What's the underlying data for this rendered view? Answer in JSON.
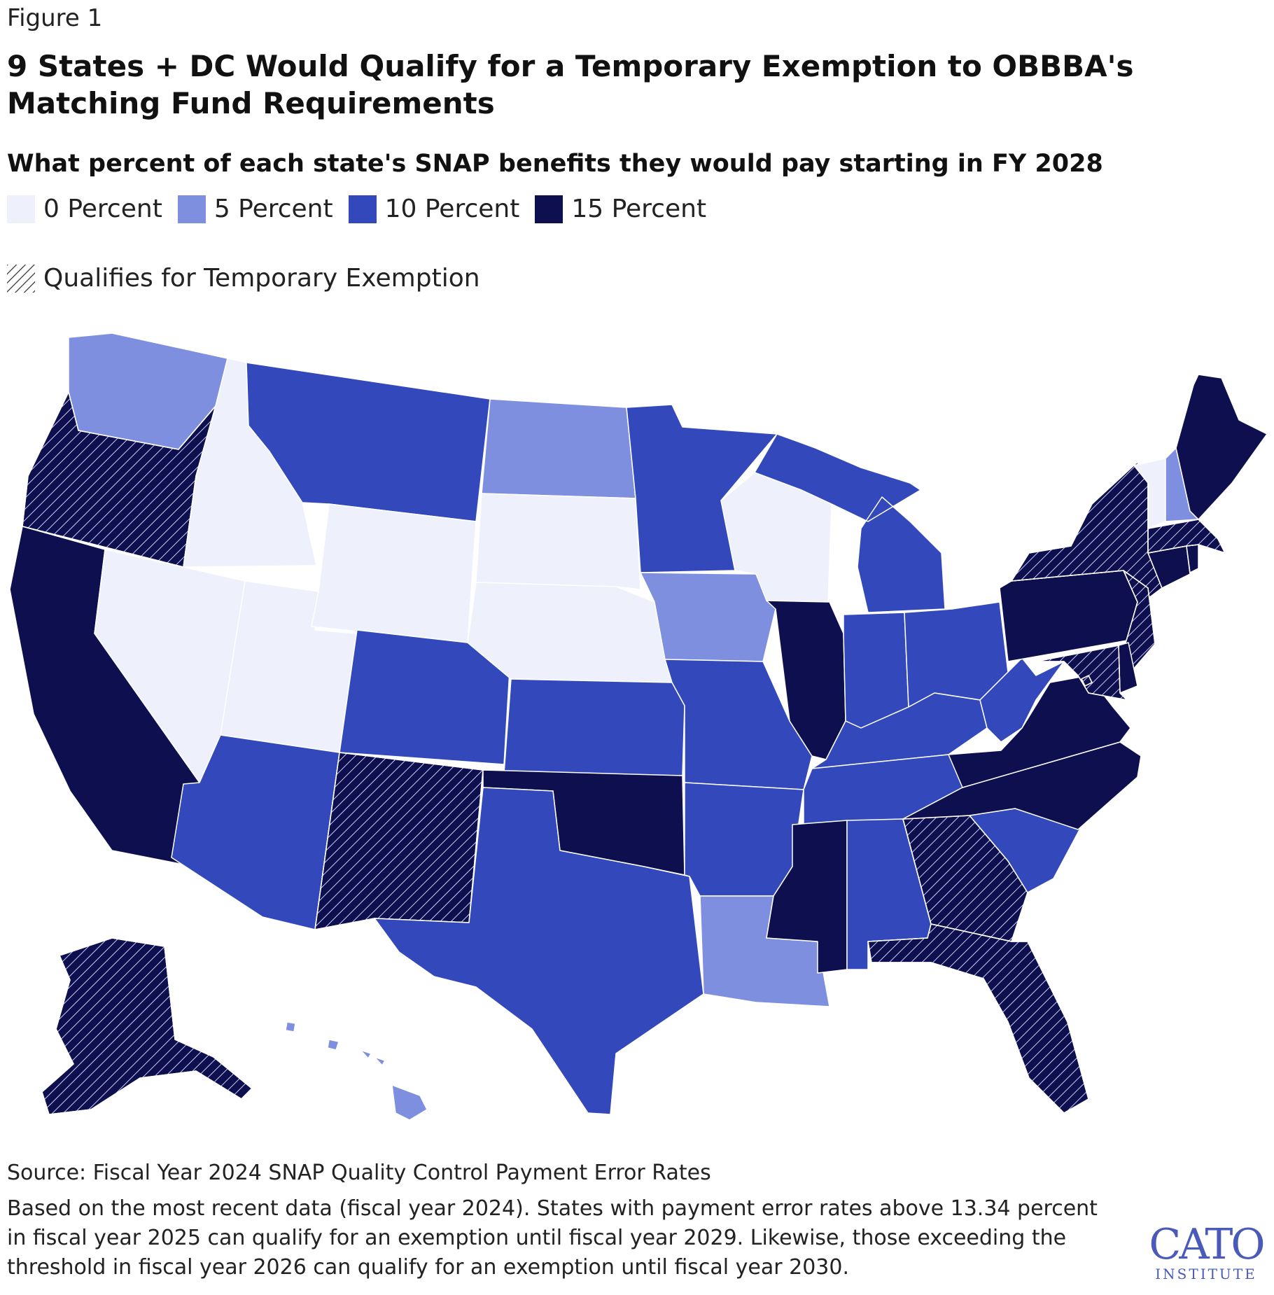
{
  "figure_label": "Figure 1",
  "title": "9 States + DC Would Qualify for a Temporary Exemption to OBBBA's Matching Fund Requirements",
  "subtitle": "What percent of each state's SNAP benefits they would pay starting in FY 2028",
  "legend": [
    {
      "label": "0 Percent",
      "color": "#eef0fb"
    },
    {
      "label": "5 Percent",
      "color": "#7f8fe0"
    },
    {
      "label": "10 Percent",
      "color": "#3349bb"
    },
    {
      "label": "15 Percent",
      "color": "#0e0f4f"
    }
  ],
  "hatch_legend": {
    "label": "Qualifies for Temporary Exemption"
  },
  "states": {
    "WA": {
      "pct": 5,
      "exempt": false
    },
    "OR": {
      "pct": 15,
      "exempt": true
    },
    "CA": {
      "pct": 15,
      "exempt": false
    },
    "ID": {
      "pct": 0,
      "exempt": false
    },
    "NV": {
      "pct": 0,
      "exempt": false
    },
    "UT": {
      "pct": 0,
      "exempt": false
    },
    "AZ": {
      "pct": 10,
      "exempt": false
    },
    "MT": {
      "pct": 10,
      "exempt": false
    },
    "WY": {
      "pct": 0,
      "exempt": false
    },
    "CO": {
      "pct": 10,
      "exempt": false
    },
    "NM": {
      "pct": 15,
      "exempt": true
    },
    "ND": {
      "pct": 5,
      "exempt": false
    },
    "SD": {
      "pct": 0,
      "exempt": false
    },
    "NE": {
      "pct": 0,
      "exempt": false
    },
    "KS": {
      "pct": 10,
      "exempt": false
    },
    "OK": {
      "pct": 15,
      "exempt": false
    },
    "TX": {
      "pct": 10,
      "exempt": false
    },
    "MN": {
      "pct": 10,
      "exempt": false
    },
    "IA": {
      "pct": 5,
      "exempt": false
    },
    "MO": {
      "pct": 10,
      "exempt": false
    },
    "AR": {
      "pct": 10,
      "exempt": false
    },
    "LA": {
      "pct": 5,
      "exempt": false
    },
    "WI": {
      "pct": 0,
      "exempt": false
    },
    "IL": {
      "pct": 15,
      "exempt": false
    },
    "MI": {
      "pct": 10,
      "exempt": false
    },
    "IN": {
      "pct": 10,
      "exempt": false
    },
    "OH": {
      "pct": 10,
      "exempt": false
    },
    "KY": {
      "pct": 10,
      "exempt": false
    },
    "TN": {
      "pct": 10,
      "exempt": false
    },
    "MS": {
      "pct": 15,
      "exempt": false
    },
    "AL": {
      "pct": 10,
      "exempt": false
    },
    "GA": {
      "pct": 15,
      "exempt": true
    },
    "FL": {
      "pct": 15,
      "exempt": true
    },
    "SC": {
      "pct": 10,
      "exempt": false
    },
    "NC": {
      "pct": 15,
      "exempt": false
    },
    "VA": {
      "pct": 15,
      "exempt": false
    },
    "WV": {
      "pct": 10,
      "exempt": false
    },
    "PA": {
      "pct": 15,
      "exempt": false
    },
    "NY": {
      "pct": 15,
      "exempt": true
    },
    "NJ": {
      "pct": 15,
      "exempt": true
    },
    "DE": {
      "pct": 15,
      "exempt": false
    },
    "MD": {
      "pct": 15,
      "exempt": true
    },
    "DC": {
      "pct": 15,
      "exempt": true
    },
    "CT": {
      "pct": 15,
      "exempt": false
    },
    "RI": {
      "pct": 15,
      "exempt": false
    },
    "MA": {
      "pct": 15,
      "exempt": true
    },
    "VT": {
      "pct": 0,
      "exempt": false
    },
    "NH": {
      "pct": 5,
      "exempt": false
    },
    "ME": {
      "pct": 15,
      "exempt": false
    },
    "AK": {
      "pct": 15,
      "exempt": true
    },
    "HI": {
      "pct": 5,
      "exempt": false
    }
  },
  "source": "Source: Fiscal Year 2024 SNAP Quality Control Payment Error Rates",
  "note": "Based on the most recent data (fiscal year 2024). States with payment error rates above 13.34 percent in fiscal year 2025 can qualify for an exemption until fiscal year 2029. Likewise, those exceeding the threshold in fiscal year 2026 can qualify for an exemption until fiscal year 2030.",
  "logo": {
    "main": "CATO",
    "sub": "INSTITUTE"
  }
}
